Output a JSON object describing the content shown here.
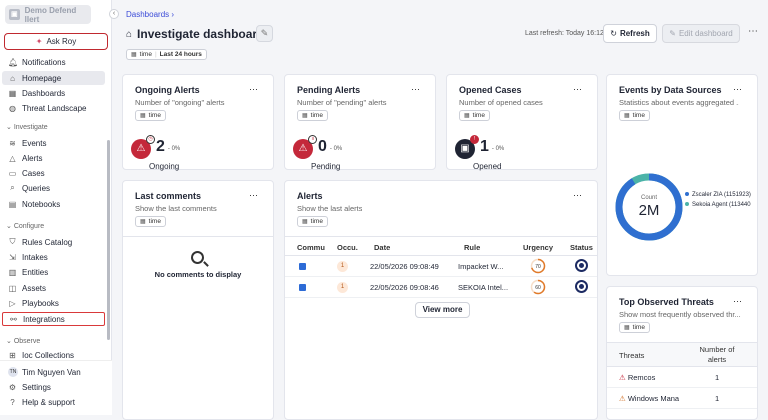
{
  "sidebar": {
    "tenant": "Demo Defend lIert",
    "ask_roy": "Ask Roy",
    "items": [
      {
        "label": "Notifications"
      },
      {
        "label": "Homepage"
      },
      {
        "label": "Dashboards"
      },
      {
        "label": "Threat Landscape"
      }
    ],
    "investigate_label": "Investigate",
    "investigate_items": [
      {
        "label": "Events"
      },
      {
        "label": "Alerts"
      },
      {
        "label": "Cases"
      },
      {
        "label": "Queries"
      },
      {
        "label": "Notebooks"
      }
    ],
    "configure_label": "Configure",
    "configure_items": [
      {
        "label": "Rules Catalog"
      },
      {
        "label": "Intakes"
      },
      {
        "label": "Entities"
      },
      {
        "label": "Assets"
      },
      {
        "label": "Playbooks"
      },
      {
        "label": "Integrations"
      }
    ],
    "observe_label": "Observe",
    "observe_items": [
      {
        "label": "Ioc Collections"
      }
    ],
    "user": {
      "initials": "TN",
      "name": "Tim Nguyen Van"
    },
    "settings": "Settings",
    "help": "Help & support"
  },
  "header": {
    "breadcrumb": "Dashboards",
    "title": "Investigate dashboard",
    "last_refresh": "Last refresh: Today 16:12",
    "refresh": "Refresh",
    "edit_dashboard": "Edit dashboard",
    "time_label": "time",
    "time_value": "Last 24 hours"
  },
  "cards": {
    "ongoing": {
      "title": "Ongoing Alerts",
      "subtitle": "Number of \"ongoing\" alerts",
      "chip": "time",
      "value": "2",
      "delta": "- 0%",
      "label": "Ongoing"
    },
    "pending": {
      "title": "Pending Alerts",
      "subtitle": "Number of \"pending\" alerts",
      "chip": "time",
      "value": "0",
      "delta": "- 0%",
      "label": "Pending"
    },
    "opened": {
      "title": "Opened Cases",
      "subtitle": "Number of opened cases",
      "chip": "time",
      "value": "1",
      "delta": "- 0%",
      "label": "Opened"
    },
    "events": {
      "title": "Events by Data Sources",
      "subtitle": "Statistics about events aggregated ...",
      "chip": "time",
      "donut_label": "Count",
      "donut_value": "2M",
      "legend": [
        {
          "name": "Zscaler ZIA (1151923)",
          "color": "#2f6fd0"
        },
        {
          "name": "Sekoia Agent (113440",
          "color": "#4bb3a8"
        }
      ]
    },
    "comments": {
      "title": "Last comments",
      "subtitle": "Show the last comments",
      "chip": "time",
      "empty": "No comments to display"
    },
    "alerts": {
      "title": "Alerts",
      "subtitle": "Show the last alerts",
      "chip": "time",
      "columns": [
        "Commu",
        "Occu.",
        "Date",
        "Rule",
        "Urgency",
        "Status"
      ],
      "rows": [
        {
          "occ": "1",
          "date": "22/05/2026 09:08:49",
          "rule": "Impacket W...",
          "urgency": "70"
        },
        {
          "occ": "1",
          "date": "22/05/2026 09:08:46",
          "rule": "SEKOIA Intel...",
          "urgency": "60"
        }
      ],
      "view_more": "View more"
    },
    "threats": {
      "title": "Top Observed Threats",
      "subtitle": "Show most frequently observed thr...",
      "chip": "time",
      "columns": [
        "Threats",
        "Number of alerts"
      ],
      "rows": [
        {
          "name": "Remcos",
          "count": "1"
        },
        {
          "name": "Windows Mana",
          "count": "1"
        }
      ]
    }
  }
}
